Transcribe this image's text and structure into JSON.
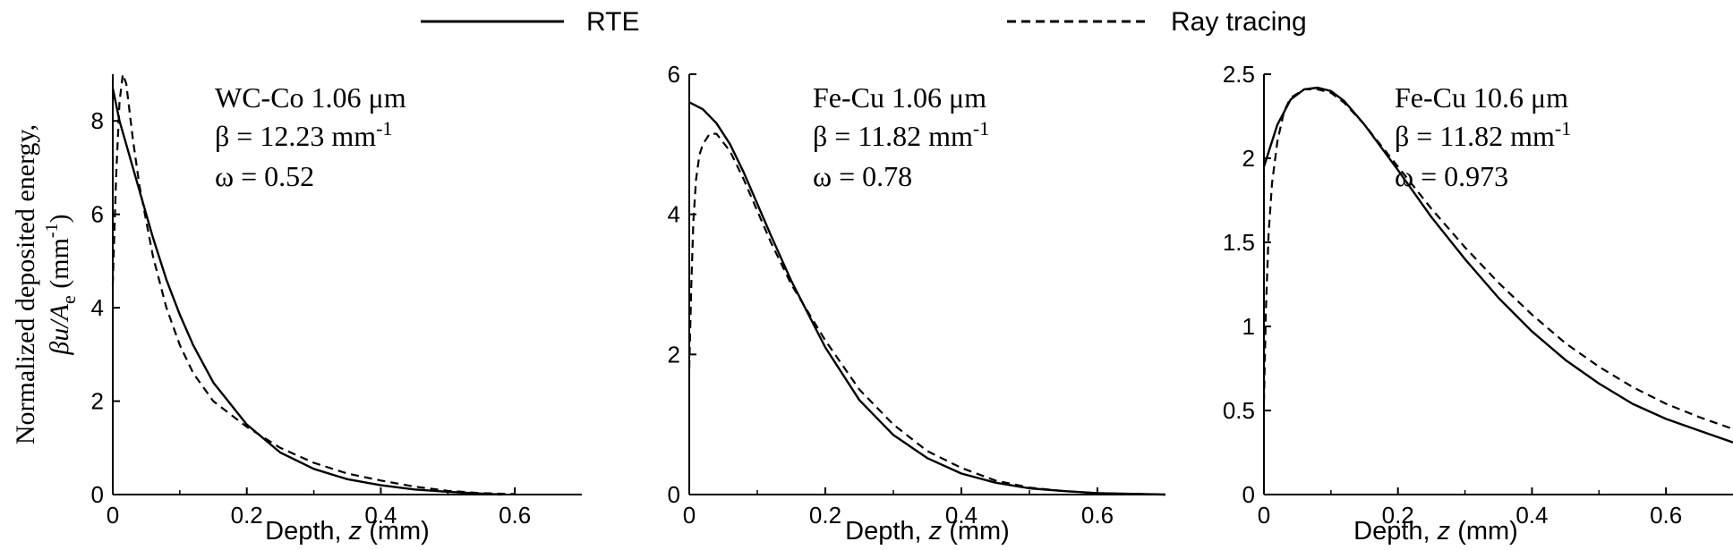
{
  "legend": {
    "rte_label": "RTE",
    "ray_label": "Ray tracing"
  },
  "ylabel": {
    "line1": "Normalized deposited energy,",
    "line2_prefix": "βu/A",
    "line2_sub": "e",
    "line2_suffix": " (mm",
    "line2_sup": "-1",
    "line2_end": ")"
  },
  "xlabel": {
    "prefix": "Depth, ",
    "var": "z",
    "suffix": " (mm)"
  },
  "chart_data": [
    {
      "type": "line",
      "annotations": [
        "WC-Co 1.06 μm",
        "β = 12.23 mm",
        "-1",
        "ω = 0.52"
      ],
      "xlim": [
        0,
        0.7
      ],
      "ylim": [
        0,
        9
      ],
      "xticks": [
        0,
        0.2,
        0.4,
        0.6
      ],
      "xtick_labels": [
        "0",
        "0.2",
        "0.4",
        "0.6"
      ],
      "yticks": [
        0,
        2,
        4,
        6,
        8
      ],
      "ytick_labels": [
        "0",
        "2",
        "4",
        "6",
        "8"
      ],
      "series": [
        {
          "name": "RTE",
          "style": "solid",
          "x": [
            0,
            0.01,
            0.02,
            0.04,
            0.06,
            0.08,
            0.1,
            0.12,
            0.15,
            0.2,
            0.25,
            0.3,
            0.35,
            0.4,
            0.45,
            0.5,
            0.55,
            0.58
          ],
          "y": [
            8.7,
            8.0,
            7.5,
            6.5,
            5.5,
            4.6,
            3.85,
            3.2,
            2.4,
            1.5,
            0.9,
            0.55,
            0.33,
            0.2,
            0.11,
            0.06,
            0.02,
            0.0
          ]
        },
        {
          "name": "Ray tracing",
          "style": "dashed",
          "x": [
            0,
            0.005,
            0.01,
            0.015,
            0.02,
            0.03,
            0.04,
            0.06,
            0.08,
            0.1,
            0.12,
            0.15,
            0.2,
            0.25,
            0.3,
            0.35,
            0.4,
            0.45,
            0.5,
            0.55,
            0.6
          ],
          "y": [
            4.5,
            6.8,
            8.4,
            9.0,
            8.8,
            7.6,
            6.6,
            5.1,
            4.0,
            3.2,
            2.6,
            2.0,
            1.45,
            1.0,
            0.68,
            0.45,
            0.3,
            0.17,
            0.08,
            0.03,
            0.01
          ]
        }
      ]
    },
    {
      "type": "line",
      "annotations": [
        "Fe-Cu 1.06 μm",
        "β = 11.82 mm",
        "-1",
        "ω = 0.78"
      ],
      "xlim": [
        0,
        0.7
      ],
      "ylim": [
        0,
        6
      ],
      "xticks": [
        0,
        0.2,
        0.4,
        0.6
      ],
      "xtick_labels": [
        "0",
        "0.2",
        "0.4",
        "0.6"
      ],
      "yticks": [
        0,
        2,
        4,
        6
      ],
      "ytick_labels": [
        "0",
        "2",
        "4",
        "6"
      ],
      "series": [
        {
          "name": "RTE",
          "style": "solid",
          "x": [
            0,
            0.02,
            0.04,
            0.06,
            0.08,
            0.1,
            0.12,
            0.15,
            0.2,
            0.25,
            0.3,
            0.35,
            0.4,
            0.45,
            0.5,
            0.55,
            0.6,
            0.65,
            0.7
          ],
          "y": [
            5.6,
            5.5,
            5.3,
            5.0,
            4.6,
            4.15,
            3.7,
            3.05,
            2.1,
            1.35,
            0.85,
            0.52,
            0.3,
            0.17,
            0.09,
            0.05,
            0.02,
            0.01,
            0.0
          ]
        },
        {
          "name": "Ray tracing",
          "style": "dashed",
          "x": [
            0,
            0.003,
            0.006,
            0.01,
            0.015,
            0.02,
            0.03,
            0.04,
            0.06,
            0.08,
            0.1,
            0.12,
            0.15,
            0.2,
            0.25,
            0.3,
            0.35,
            0.4,
            0.45,
            0.5,
            0.55,
            0.6,
            0.65,
            0.7
          ],
          "y": [
            1.8,
            3.0,
            3.9,
            4.5,
            4.85,
            5.0,
            5.15,
            5.15,
            4.9,
            4.5,
            4.05,
            3.6,
            3.0,
            2.2,
            1.5,
            1.0,
            0.62,
            0.38,
            0.2,
            0.1,
            0.05,
            0.02,
            0.01,
            0.0
          ]
        }
      ]
    },
    {
      "type": "line",
      "annotations": [
        "Fe-Cu 10.6 μm",
        "β = 11.82 mm",
        "-1",
        "ω = 0.973"
      ],
      "xlim": [
        0,
        0.7
      ],
      "ylim": [
        0,
        2.5
      ],
      "xticks": [
        0,
        0.2,
        0.4,
        0.6
      ],
      "xtick_labels": [
        "0",
        "0.2",
        "0.4",
        "0.6"
      ],
      "yticks": [
        0,
        0.5,
        1,
        1.5,
        2,
        2.5
      ],
      "ytick_labels": [
        "0",
        "0.5",
        "1",
        "1.5",
        "2",
        "2.5"
      ],
      "series": [
        {
          "name": "RTE",
          "style": "solid",
          "x": [
            0,
            0.02,
            0.04,
            0.06,
            0.08,
            0.1,
            0.12,
            0.15,
            0.2,
            0.25,
            0.3,
            0.35,
            0.4,
            0.45,
            0.5,
            0.55,
            0.6,
            0.65,
            0.7
          ],
          "y": [
            1.95,
            2.2,
            2.35,
            2.41,
            2.42,
            2.4,
            2.34,
            2.2,
            1.93,
            1.65,
            1.4,
            1.17,
            0.97,
            0.8,
            0.66,
            0.54,
            0.45,
            0.38,
            0.31
          ]
        },
        {
          "name": "Ray tracing",
          "style": "dashed",
          "x": [
            0,
            0.003,
            0.007,
            0.012,
            0.02,
            0.03,
            0.04,
            0.06,
            0.08,
            0.1,
            0.12,
            0.15,
            0.2,
            0.25,
            0.3,
            0.35,
            0.4,
            0.45,
            0.5,
            0.55,
            0.6,
            0.65,
            0.7
          ],
          "y": [
            0.55,
            1.1,
            1.55,
            1.85,
            2.1,
            2.28,
            2.36,
            2.41,
            2.41,
            2.39,
            2.33,
            2.2,
            1.95,
            1.7,
            1.47,
            1.26,
            1.07,
            0.9,
            0.76,
            0.64,
            0.54,
            0.46,
            0.39
          ]
        }
      ]
    }
  ]
}
